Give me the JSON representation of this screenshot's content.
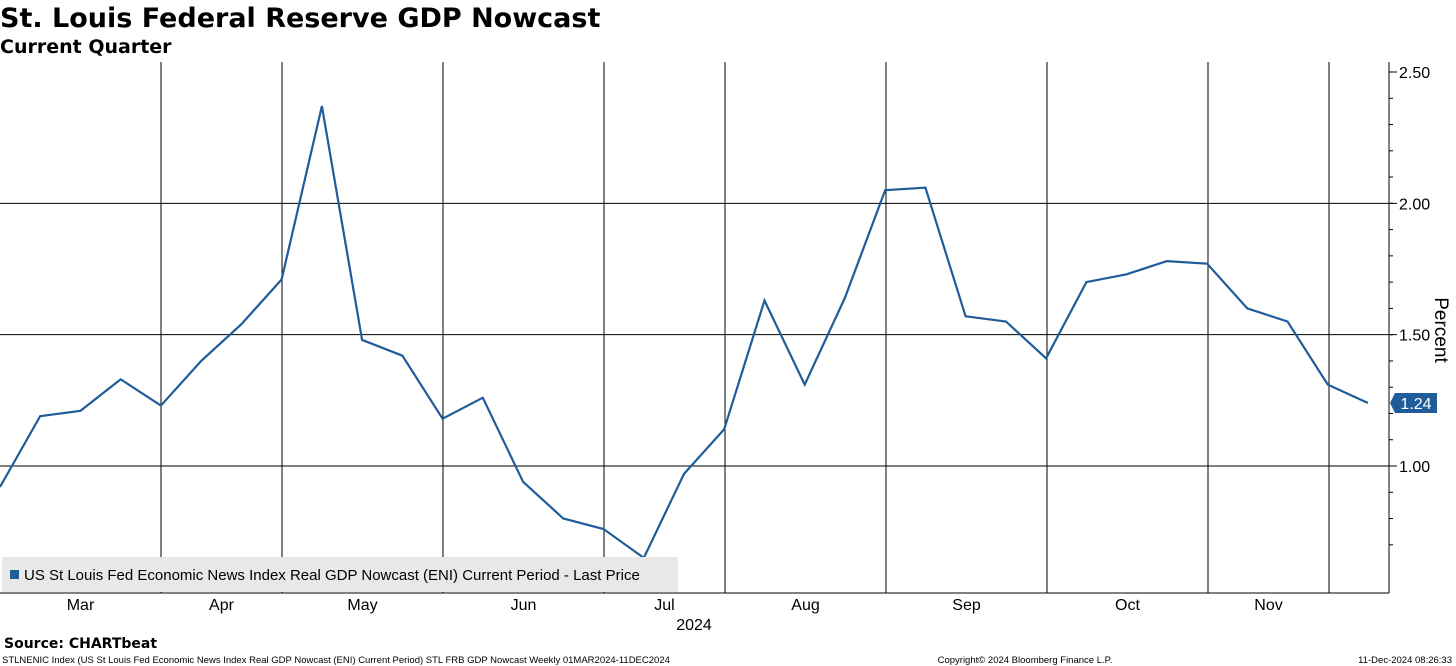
{
  "title": "St. Louis Federal Reserve GDP Nowcast",
  "subtitle": "Current Quarter",
  "source": "Source: CHARTbeat",
  "footer": {
    "left": "STLNENIC Index (US St Louis Fed Economic News Index Real GDP Nowcast (ENI) Current Period) STL FRB GDP Nowcast  Weekly 01MAR2024-11DEC2024",
    "center": "Copyright© 2024 Bloomberg Finance L.P.",
    "right": "11-Dec-2024 08:26:33"
  },
  "colors": {
    "series": "#1f5c99",
    "grid": "#000000",
    "legend_bg": "#e8e8e8",
    "last_price_label_bg": "#1f5c99"
  },
  "chart_data": {
    "type": "line",
    "title": "St. Louis Federal Reserve GDP Nowcast",
    "subtitle": "Current Quarter",
    "ylabel": "Percent",
    "xlabel": "",
    "x_tick_labels": [
      "Mar",
      "Apr",
      "May",
      "Jun",
      "Jul",
      "Aug",
      "Sep",
      "Oct",
      "Nov"
    ],
    "year_label": "2024",
    "y_ticks": [
      "2.50",
      "2.00",
      "1.50",
      "1.00"
    ],
    "ylim": [
      0.75,
      2.55
    ],
    "y_axis_side": "right",
    "grid": true,
    "legend": {
      "position": "bottom-left",
      "entries": [
        "US St Louis Fed Economic News Index Real GDP Nowcast (ENI) Current Period - Last Price"
      ]
    },
    "last_value_label": "1.24",
    "series": [
      {
        "name": "US St Louis Fed Economic News Index Real GDP Nowcast (ENI) Current Period - Last Price",
        "frequency": "weekly",
        "start": "2024-03-01",
        "values": [
          0.92,
          1.19,
          1.21,
          1.33,
          1.23,
          1.4,
          1.54,
          1.71,
          2.37,
          1.48,
          1.42,
          1.18,
          1.26,
          0.94,
          0.8,
          0.76,
          0.65,
          0.97,
          1.14,
          1.63,
          1.31,
          1.64,
          2.05,
          2.06,
          1.57,
          1.55,
          1.41,
          1.7,
          1.73,
          1.78,
          1.77,
          1.6,
          1.55,
          1.31,
          1.24
        ]
      }
    ]
  }
}
